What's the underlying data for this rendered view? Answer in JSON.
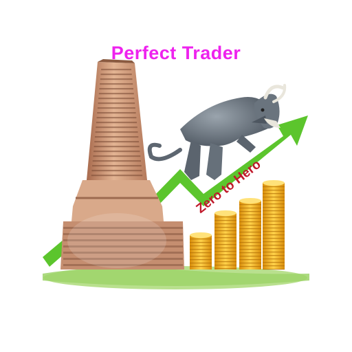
{
  "logo": {
    "title": "Perfect Trader",
    "slogan": "Zero to Hero",
    "colors": {
      "title": "#ee22ee",
      "slogan": "#c0182a",
      "arrow": "#5cc52d",
      "ground": "#9ed36a",
      "building": "#d4a583",
      "bull": "#6f7a85",
      "coins": "#f2b21a"
    },
    "icons": [
      "stock-exchange-building-icon",
      "bull-icon",
      "trend-arrow-icon",
      "coin-stack-icon"
    ]
  }
}
